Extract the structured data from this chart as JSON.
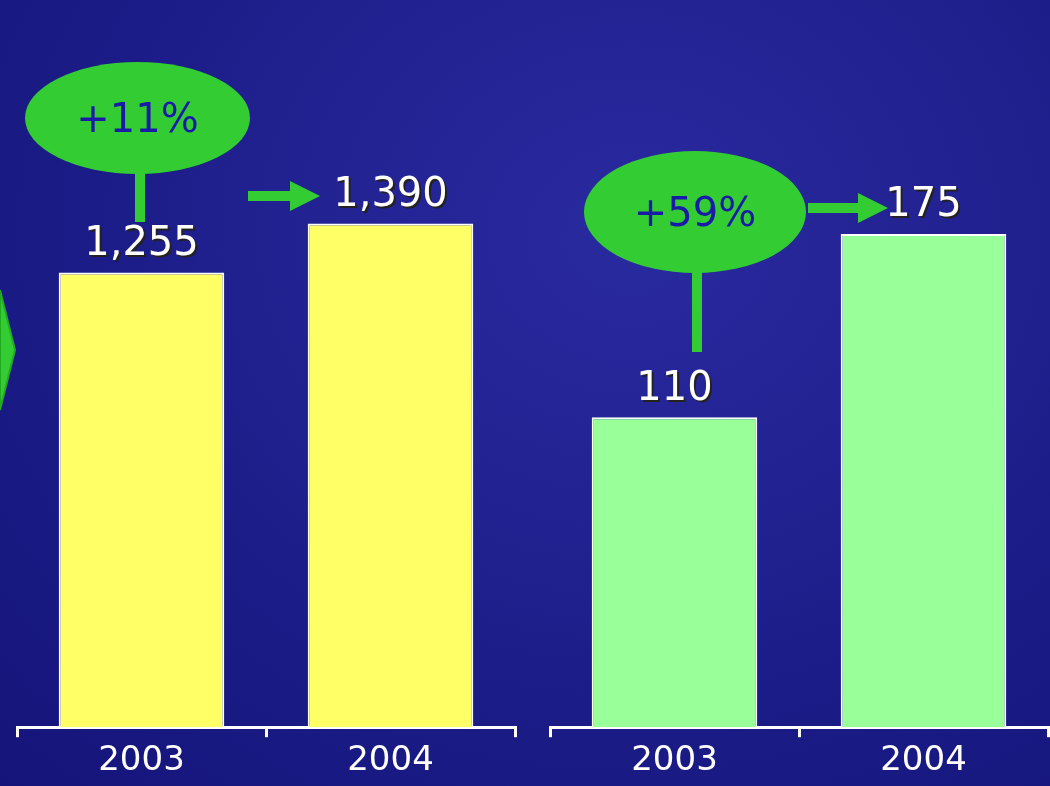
{
  "chart_data": [
    {
      "type": "bar",
      "categories": [
        "2003",
        "2004"
      ],
      "values": [
        1255,
        1390
      ],
      "value_labels": [
        "1,255",
        "1,390"
      ],
      "color": "#ffff66",
      "tick_labels": "x",
      "annotations": [
        "+11%"
      ]
    },
    {
      "type": "bar",
      "categories": [
        "2003",
        "2004"
      ],
      "values": [
        110,
        175
      ],
      "value_labels": [
        "110",
        "175"
      ],
      "color": "#99ff99",
      "tick_labels": "x",
      "annotations": [
        "+59%"
      ]
    }
  ]
}
